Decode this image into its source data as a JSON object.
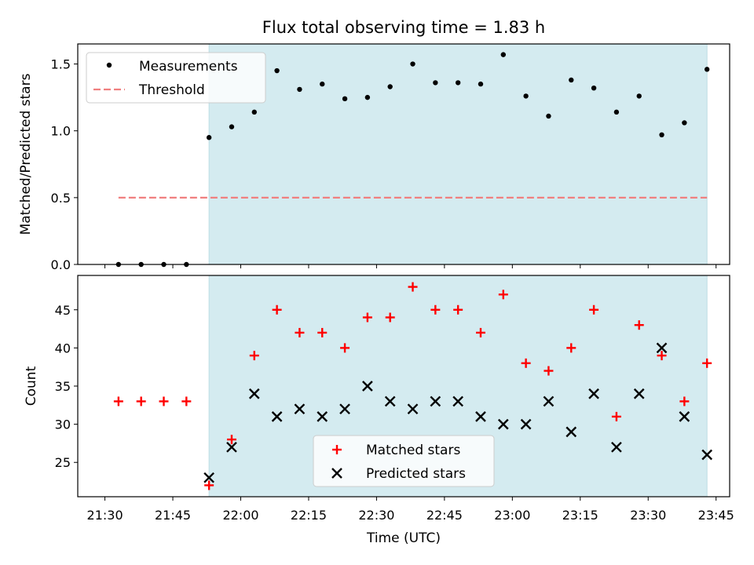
{
  "title": "Flux total observing time = 1.83 h",
  "colors": {
    "shade": "#d4ebf0",
    "shade_edge": "#bcdde4",
    "measurement": "#000000",
    "threshold": "#f07f7f",
    "matched": "#ff0000",
    "predicted": "#000000"
  },
  "chart_data": [
    {
      "type": "scatter",
      "panel": "top",
      "ylabel": "Matched/Predicted stars",
      "xlabel": "",
      "ylim": [
        0,
        1.65
      ],
      "yticks": [
        0.0,
        0.5,
        1.0,
        1.5
      ],
      "ytick_labels": [
        "0.0",
        "0.5",
        "1.0",
        "1.5"
      ],
      "legend": {
        "placement": "upper-left",
        "entries": [
          "Measurements",
          "Threshold"
        ]
      },
      "shaded_span": [
        "21:53",
        "23:43"
      ],
      "threshold": {
        "value": 0.5,
        "x_range": [
          "21:33",
          "23:43"
        ]
      },
      "x": [
        "21:33",
        "21:38",
        "21:43",
        "21:48",
        "21:53",
        "21:58",
        "22:03",
        "22:08",
        "22:13",
        "22:18",
        "22:23",
        "22:28",
        "22:33",
        "22:38",
        "22:43",
        "22:48",
        "22:53",
        "22:58",
        "23:03",
        "23:08",
        "23:13",
        "23:18",
        "23:23",
        "23:28",
        "23:33",
        "23:38",
        "23:43"
      ],
      "series": [
        {
          "name": "Measurements",
          "values": [
            0.0,
            0.0,
            0.0,
            0.0,
            0.95,
            1.03,
            1.14,
            1.45,
            1.31,
            1.35,
            1.24,
            1.25,
            1.33,
            1.5,
            1.36,
            1.36,
            1.35,
            1.57,
            1.26,
            1.11,
            1.38,
            1.32,
            1.14,
            1.26,
            0.97,
            1.06,
            1.46
          ]
        }
      ]
    },
    {
      "type": "scatter",
      "panel": "bottom",
      "ylabel": "Count",
      "xlabel": "Time (UTC)",
      "ylim": [
        20.5,
        49.5
      ],
      "yticks": [
        25,
        30,
        35,
        40,
        45
      ],
      "ytick_labels": [
        "25",
        "30",
        "35",
        "40",
        "45"
      ],
      "xlim": [
        "21:24",
        "23:48"
      ],
      "xticks": [
        "21:30",
        "21:45",
        "22:00",
        "22:15",
        "22:30",
        "22:45",
        "23:00",
        "23:15",
        "23:30",
        "23:45"
      ],
      "legend": {
        "placement": "lower-center",
        "entries": [
          "Matched stars",
          "Predicted stars"
        ]
      },
      "shaded_span": [
        "21:53",
        "23:43"
      ],
      "x": [
        "21:33",
        "21:38",
        "21:43",
        "21:48",
        "21:53",
        "21:58",
        "22:03",
        "22:08",
        "22:13",
        "22:18",
        "22:23",
        "22:28",
        "22:33",
        "22:38",
        "22:43",
        "22:48",
        "22:53",
        "22:58",
        "23:03",
        "23:08",
        "23:13",
        "23:18",
        "23:23",
        "23:28",
        "23:33",
        "23:38",
        "23:43"
      ],
      "series": [
        {
          "name": "Matched stars",
          "marker": "plus",
          "values": [
            33,
            33,
            33,
            33,
            22,
            28,
            39,
            45,
            42,
            42,
            40,
            44,
            44,
            48,
            45,
            45,
            42,
            47,
            38,
            37,
            40,
            45,
            31,
            43,
            39,
            33,
            38
          ]
        },
        {
          "name": "Predicted stars",
          "marker": "x",
          "x_start_index": 4,
          "values": [
            23,
            27,
            34,
            31,
            32,
            31,
            32,
            35,
            33,
            32,
            33,
            33,
            31,
            30,
            30,
            33,
            29,
            34,
            27,
            34,
            40,
            31,
            26
          ]
        }
      ]
    }
  ]
}
